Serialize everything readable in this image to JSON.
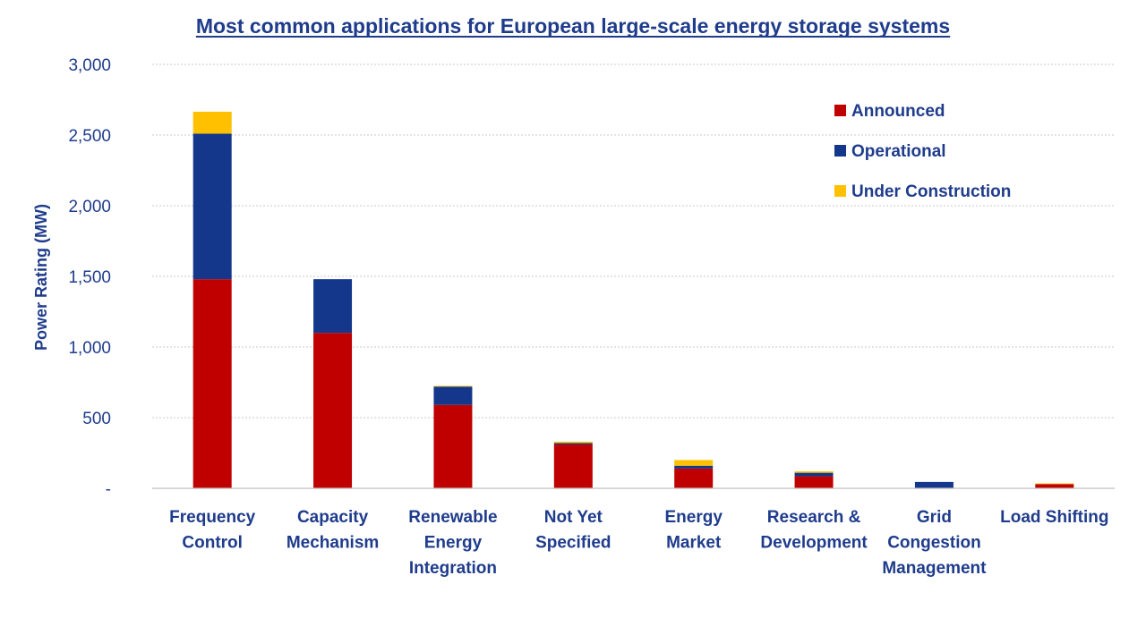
{
  "chart_data": {
    "type": "bar",
    "stacked": true,
    "title": "Most common applications for European large-scale energy storage systems",
    "ylabel": "Power Rating (MW)",
    "xlabel": "",
    "ylim": [
      0,
      3000
    ],
    "yticks": [
      0,
      500,
      1000,
      1500,
      2000,
      2500,
      3000
    ],
    "ytick_labels": [
      "-",
      "500",
      "1,000",
      "1,500",
      "2,000",
      "2,500",
      "3,000"
    ],
    "grid": true,
    "legend_position": "top-right",
    "categories": [
      [
        "Frequency",
        "Control"
      ],
      [
        "Capacity",
        "Mechanism"
      ],
      [
        "Renewable",
        "Energy",
        "Integration"
      ],
      [
        "Not Yet",
        "Specified"
      ],
      [
        "Energy",
        "Market"
      ],
      [
        "Research &",
        "Development"
      ],
      [
        "Grid",
        "Congestion",
        "Management"
      ],
      [
        "Load Shifting"
      ]
    ],
    "series": [
      {
        "name": "Announced",
        "color": "#C00000",
        "values": [
          1480,
          1100,
          590,
          310,
          140,
          85,
          0,
          30
        ]
      },
      {
        "name": "Operational",
        "color": "#14378C",
        "values": [
          1030,
          380,
          130,
          10,
          20,
          25,
          45,
          0
        ]
      },
      {
        "name": "Under Construction",
        "color": "#FFC000",
        "values": [
          155,
          0,
          5,
          10,
          40,
          10,
          0,
          5
        ]
      }
    ]
  }
}
